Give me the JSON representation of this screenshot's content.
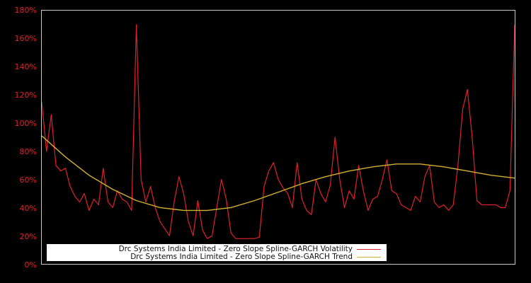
{
  "chart_data": {
    "type": "line",
    "title": "",
    "xlabel": "",
    "ylabel": "",
    "ylim": [
      0,
      180
    ],
    "y_ticks": [
      "0%",
      "20%",
      "40%",
      "60%",
      "80%",
      "100%",
      "120%",
      "140%",
      "160%",
      "180%"
    ],
    "x_ticks": [],
    "grid": false,
    "legend_position": "bottom-left inside",
    "background": "#000000",
    "series": [
      {
        "name": "Drc Systems India Limited - Zero Slope Spline-GARCH Volatility",
        "color": "#e0202a",
        "x": [
          0,
          1,
          2,
          3,
          4,
          5,
          6,
          7,
          8,
          9,
          10,
          11,
          12,
          13,
          14,
          15,
          16,
          17,
          18,
          19,
          20,
          21,
          22,
          23,
          24,
          25,
          26,
          27,
          28,
          29,
          30,
          31,
          32,
          33,
          34,
          35,
          36,
          37,
          38,
          39,
          40,
          41,
          42,
          43,
          44,
          45,
          46,
          47,
          48,
          49,
          50,
          51,
          52,
          53,
          54,
          55,
          56,
          57,
          58,
          59,
          60,
          61,
          62,
          63,
          64,
          65,
          66,
          67,
          68,
          69,
          70,
          71,
          72,
          73,
          74,
          75,
          76,
          77,
          78,
          79,
          80,
          81,
          82,
          83,
          84,
          85,
          86,
          87,
          88,
          89,
          90,
          91,
          92,
          93,
          94,
          95,
          96,
          97,
          98,
          99,
          100
        ],
        "values": [
          115,
          80,
          106,
          70,
          66,
          68,
          55,
          48,
          44,
          50,
          38,
          46,
          42,
          68,
          44,
          40,
          52,
          46,
          44,
          38,
          170,
          60,
          44,
          55,
          40,
          30,
          25,
          20,
          44,
          62,
          50,
          30,
          20,
          45,
          24,
          18,
          20,
          40,
          60,
          46,
          22,
          18,
          18,
          18,
          18,
          18,
          19,
          55,
          66,
          72,
          60,
          54,
          50,
          40,
          72,
          46,
          38,
          35,
          60,
          50,
          44,
          56,
          90,
          60,
          40,
          52,
          46,
          70,
          52,
          38,
          46,
          48,
          60,
          74,
          52,
          50,
          42,
          40,
          38,
          48,
          44,
          62,
          70,
          44,
          40,
          42,
          38,
          42,
          70,
          110,
          124,
          90,
          45,
          42,
          42,
          42,
          42,
          40,
          40,
          52,
          170
        ]
      },
      {
        "name": "Drc Systems India Limited - Zero Slope Spline-GARCH Trend",
        "color": "#d4b030",
        "x": [
          0,
          5,
          10,
          15,
          20,
          25,
          30,
          35,
          40,
          45,
          50,
          55,
          60,
          65,
          70,
          75,
          80,
          85,
          90,
          95,
          100
        ],
        "values": [
          91,
          76,
          63,
          53,
          45,
          40,
          38,
          38,
          40,
          45,
          51,
          57,
          62,
          66,
          69,
          71,
          71,
          69,
          66,
          63,
          61
        ]
      }
    ]
  },
  "y_axis": {
    "ticks": [
      "180%",
      "160%",
      "140%",
      "120%",
      "100%",
      "80%",
      "60%",
      "40%",
      "20%",
      "0%"
    ]
  },
  "legend": {
    "items": [
      {
        "label": "Drc Systems India Limited - Zero Slope Spline-GARCH Volatility",
        "color": "#e0202a"
      },
      {
        "label": "Drc Systems India Limited - Zero Slope Spline-GARCH Trend",
        "color": "#d4b030"
      }
    ]
  },
  "colors": {
    "background": "#000000",
    "axis": "#c8c8c8",
    "tick_label": "#e0202a",
    "volatility": "#e0202a",
    "trend": "#d4b030",
    "legend_bg": "#ffffff",
    "legend_text": "#111111"
  }
}
